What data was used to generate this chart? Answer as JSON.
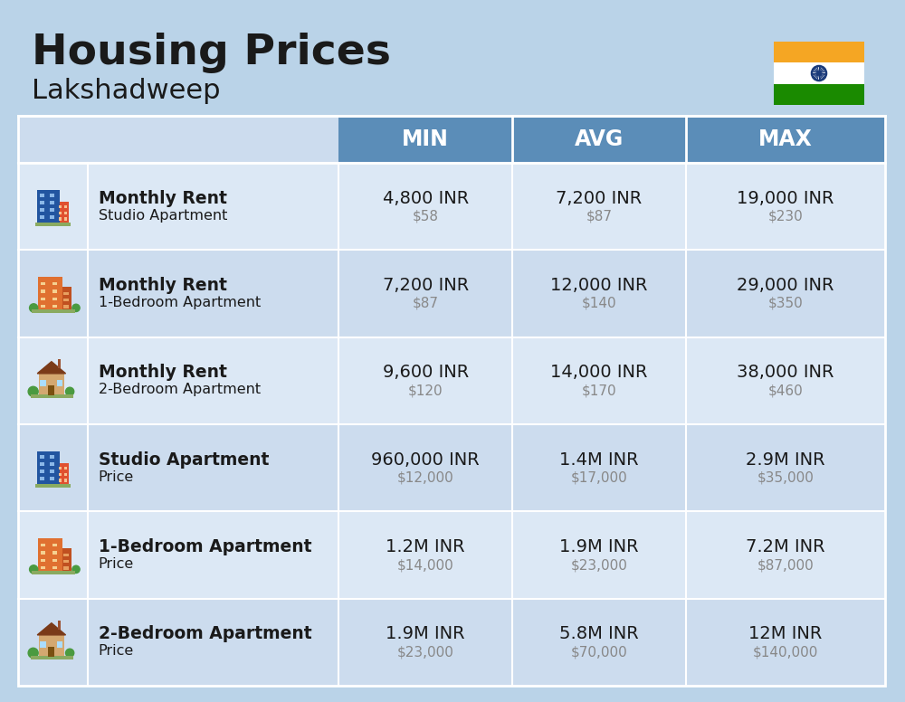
{
  "title": "Housing Prices",
  "subtitle": "Lakshadweep",
  "background_color": "#bad3e8",
  "header_bg_color": "#5b8db8",
  "header_text_color": "#ffffff",
  "row_bg_light": "#dce8f5",
  "row_bg_mid": "#ccdcee",
  "col_header_labels": [
    "MIN",
    "AVG",
    "MAX"
  ],
  "rows": [
    {
      "label_bold": "Monthly Rent",
      "label_light": "Studio Apartment",
      "min_inr": "4,800 INR",
      "min_usd": "$58",
      "avg_inr": "7,200 INR",
      "avg_usd": "$87",
      "max_inr": "19,000 INR",
      "max_usd": "$230",
      "icon_type": "studio_blue"
    },
    {
      "label_bold": "Monthly Rent",
      "label_light": "1-Bedroom Apartment",
      "min_inr": "7,200 INR",
      "min_usd": "$87",
      "avg_inr": "12,000 INR",
      "avg_usd": "$140",
      "max_inr": "29,000 INR",
      "max_usd": "$350",
      "icon_type": "apartment_orange"
    },
    {
      "label_bold": "Monthly Rent",
      "label_light": "2-Bedroom Apartment",
      "min_inr": "9,600 INR",
      "min_usd": "$120",
      "avg_inr": "14,000 INR",
      "avg_usd": "$170",
      "max_inr": "38,000 INR",
      "max_usd": "$460",
      "icon_type": "house_brown"
    },
    {
      "label_bold": "Studio Apartment",
      "label_light": "Price",
      "min_inr": "960,000 INR",
      "min_usd": "$12,000",
      "avg_inr": "1.4M INR",
      "avg_usd": "$17,000",
      "max_inr": "2.9M INR",
      "max_usd": "$35,000",
      "icon_type": "studio_blue"
    },
    {
      "label_bold": "1-Bedroom Apartment",
      "label_light": "Price",
      "min_inr": "1.2M INR",
      "min_usd": "$14,000",
      "avg_inr": "1.9M INR",
      "avg_usd": "$23,000",
      "max_inr": "7.2M INR",
      "max_usd": "$87,000",
      "icon_type": "apartment_orange"
    },
    {
      "label_bold": "2-Bedroom Apartment",
      "label_light": "Price",
      "min_inr": "1.9M INR",
      "min_usd": "$23,000",
      "avg_inr": "5.8M INR",
      "avg_usd": "$70,000",
      "max_inr": "12M INR",
      "max_usd": "$140,000",
      "icon_type": "house_brown"
    }
  ],
  "text_dark": "#1a1a1a",
  "text_gray": "#888888",
  "divider_color": "#ffffff",
  "flag_orange": "#F5A623",
  "flag_white": "#FFFFFF",
  "flag_green": "#1a8a00",
  "flag_ashoka_color": "#1a3a7a"
}
